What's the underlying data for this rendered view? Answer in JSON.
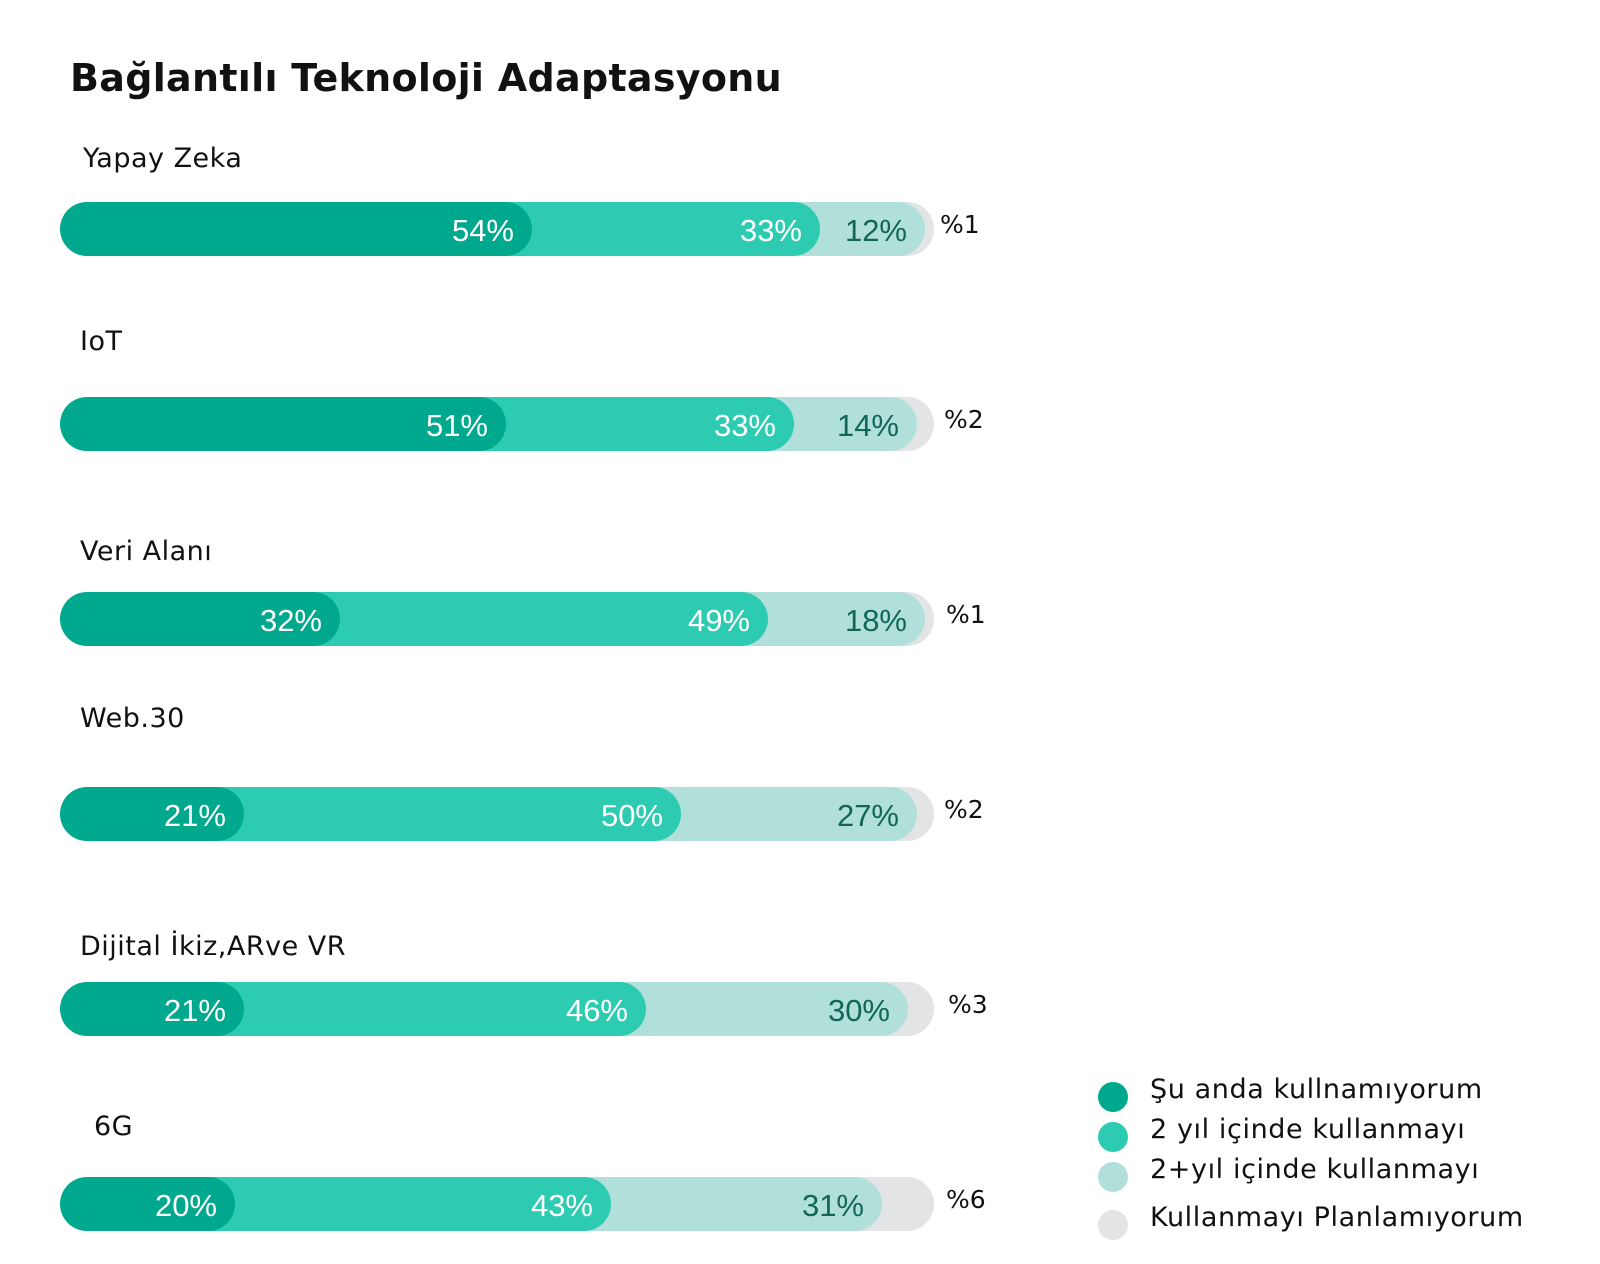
{
  "chart_data": {
    "type": "bar",
    "orientation": "horizontal",
    "stacked": true,
    "title": "Bağlantılı Teknoloji Adaptasyonu",
    "categories": [
      "Yapay Zeka",
      "IoT",
      "Veri Alanı",
      "Web.30",
      "Dijital İkiz,ARve VR",
      "6G"
    ],
    "series": [
      {
        "name": "Şu anda kullnamıyorum",
        "color": "#00a88e",
        "values": [
          54,
          51,
          32,
          21,
          21,
          20
        ],
        "labels": [
          "54%",
          "51%",
          "32%",
          "21%",
          "21%",
          "20%"
        ]
      },
      {
        "name": "2 yıl içinde kullanmayı",
        "color": "#2dccb2",
        "values": [
          33,
          33,
          49,
          50,
          46,
          43
        ],
        "labels": [
          "33%",
          "33%",
          "49%",
          "50%",
          "46%",
          "43%"
        ]
      },
      {
        "name": "2+yıl içinde kullanmayı",
        "color": "#b1e0db",
        "values": [
          12,
          14,
          18,
          27,
          30,
          31
        ],
        "labels": [
          "12%",
          "14%",
          "18%",
          "27%",
          "30%",
          "31%"
        ]
      },
      {
        "name": "Kullanmayı Planlamıyorum",
        "color": "#e3e4e6",
        "values": [
          1,
          2,
          1,
          2,
          3,
          6
        ],
        "labels": [
          "%1",
          "%2",
          "%1",
          "%2",
          "%3",
          "%6"
        ]
      }
    ],
    "label_colors": [
      "#ffffff",
      "#ffffff",
      "#116658"
    ],
    "xlim": [
      0,
      100
    ],
    "legend_position": "bottom-right",
    "grid": false
  }
}
